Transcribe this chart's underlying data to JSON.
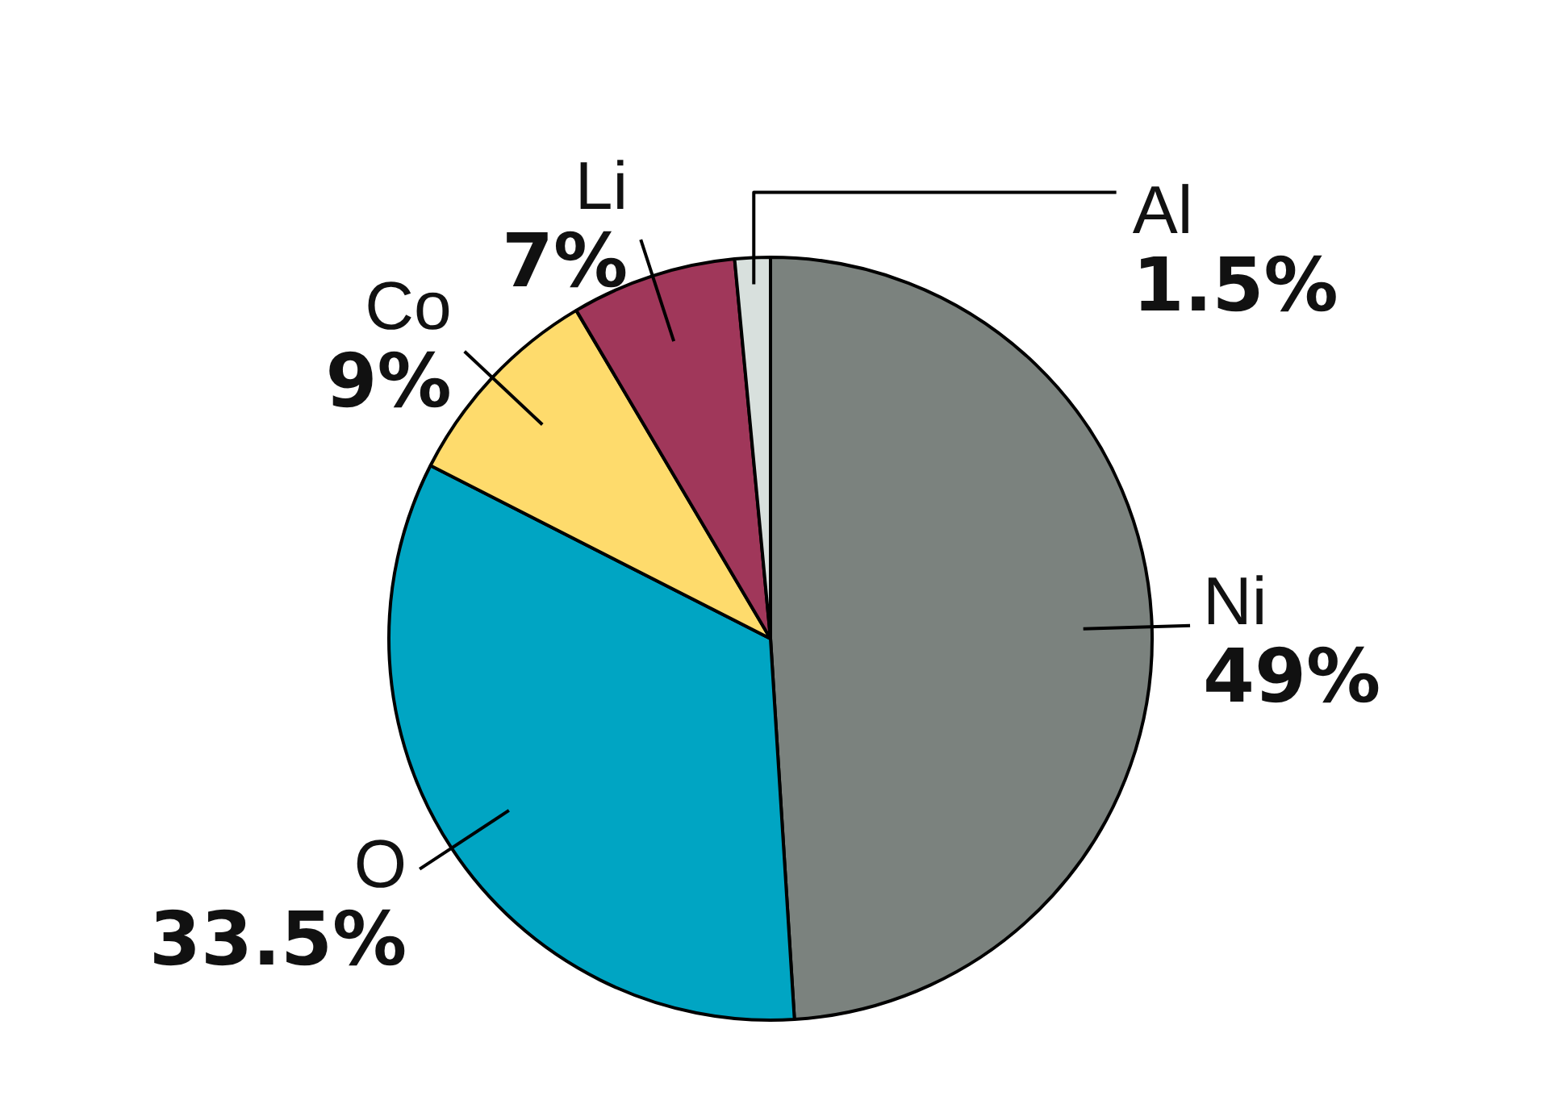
{
  "chart_data": {
    "type": "pie",
    "categories": [
      "Ni",
      "O",
      "Co",
      "Li",
      "Al"
    ],
    "values": [
      49,
      33.5,
      9,
      7,
      1.5
    ],
    "colors": [
      "#7b827e",
      "#00a5c3",
      "#fedb6c",
      "#a0375a",
      "#d8e0dd"
    ],
    "value_labels": [
      "49%",
      "33.5%",
      "9%",
      "7%",
      "1.5%"
    ],
    "legend": false
  }
}
